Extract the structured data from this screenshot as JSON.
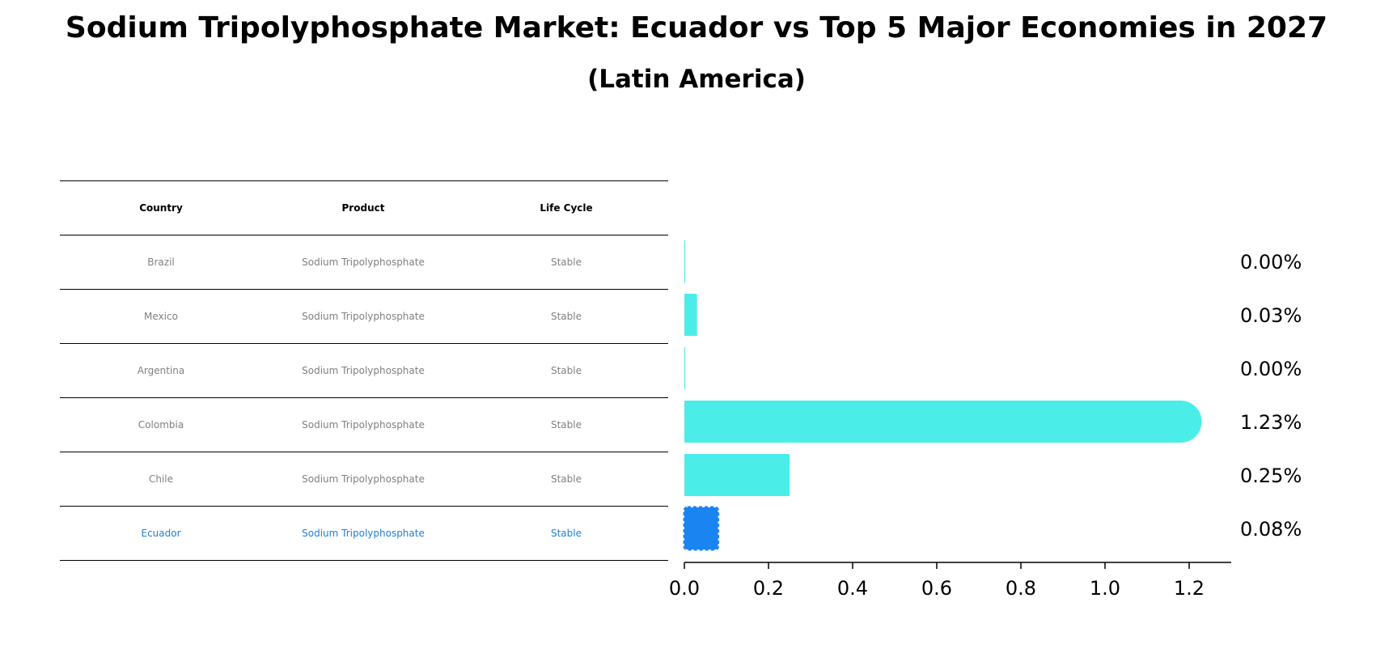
{
  "title": "Sodium Tripolyphosphate Market: Ecuador vs Top 5 Major Economies in 2027",
  "subtitle": "(Latin America)",
  "table": {
    "headers": [
      "Country",
      "Product",
      "Life Cycle"
    ],
    "rows": [
      [
        "Brazil",
        "Sodium Tripolyphosphate",
        "Stable"
      ],
      [
        "Mexico",
        "Sodium Tripolyphosphate",
        "Stable"
      ],
      [
        "Argentina",
        "Sodium Tripolyphosphate",
        "Stable"
      ],
      [
        "Colombia",
        "Sodium Tripolyphosphate",
        "Stable"
      ],
      [
        "Chile",
        "Sodium Tripolyphosphate",
        "Stable"
      ],
      [
        "Ecuador",
        "Sodium Tripolyphosphate",
        "Stable"
      ]
    ]
  },
  "chart_data": {
    "type": "bar",
    "orientation": "horizontal",
    "title": "Sodium Tripolyphosphate Market: Ecuador vs Top 5 Major Economies in 2027",
    "subtitle": "(Latin America)",
    "categories": [
      "Brazil",
      "Mexico",
      "Argentina",
      "Colombia",
      "Chile",
      "Ecuador"
    ],
    "values": [
      0.0,
      0.03,
      0.0,
      1.23,
      0.25,
      0.08
    ],
    "value_labels": [
      "0.00%",
      "0.03%",
      "0.00%",
      "1.23%",
      "0.25%",
      "0.08%"
    ],
    "highlight": "Ecuador",
    "colors": {
      "bar": "#4bede9",
      "highlight": "#1a84f0"
    },
    "xlim": [
      0,
      1.3
    ],
    "xticks": [
      0.0,
      0.2,
      0.4,
      0.6,
      0.8,
      1.0,
      1.2
    ],
    "xtick_labels": [
      "0.0",
      "0.2",
      "0.4",
      "0.6",
      "0.8",
      "1.0",
      "1.2"
    ],
    "xlabel": "",
    "ylabel": "",
    "grid": false
  }
}
